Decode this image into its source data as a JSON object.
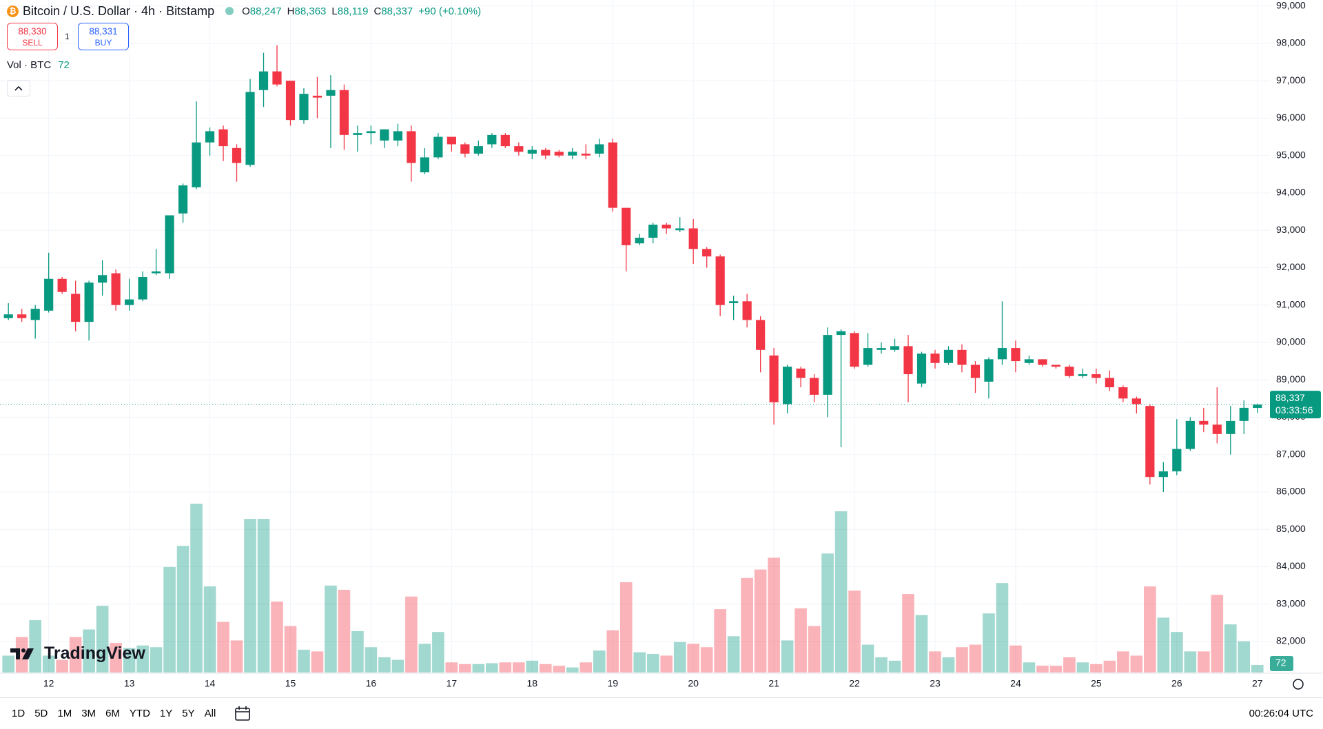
{
  "chart_data": {
    "type": "candlestick",
    "title": "Bitcoin / U.S. Dollar · 4h · Bitstamp",
    "ohlc_legend": [
      {
        "key": "O",
        "text": "88,247"
      },
      {
        "key": "H",
        "text": "88,363"
      },
      {
        "key": "L",
        "text": "88,119"
      },
      {
        "key": "C",
        "text": "88,337"
      }
    ],
    "change": "+90 (+0.10%)",
    "trade": {
      "sell": {
        "price": "88,330",
        "label": "SELL"
      },
      "quantity": "1",
      "buy": {
        "price": "88,331",
        "label": "BUY"
      }
    },
    "up_color": "#089981",
    "down_color": "#f23645",
    "categories": [
      null,
      null,
      null,
      "12",
      null,
      null,
      null,
      null,
      null,
      "13",
      null,
      null,
      null,
      null,
      null,
      "14",
      null,
      null,
      null,
      null,
      null,
      "15",
      null,
      null,
      null,
      null,
      null,
      "16",
      null,
      null,
      null,
      null,
      null,
      "17",
      null,
      null,
      null,
      null,
      null,
      "18",
      null,
      null,
      null,
      null,
      null,
      "19",
      null,
      null,
      null,
      null,
      null,
      "20",
      null,
      null,
      null,
      null,
      null,
      "21",
      null,
      null,
      null,
      null,
      null,
      "22",
      null,
      null,
      null,
      null,
      null,
      "23",
      null,
      null,
      null,
      null,
      null,
      "24",
      null,
      null,
      null,
      null,
      null,
      "25",
      null,
      null,
      null,
      null,
      null,
      "26",
      null,
      null,
      null,
      null,
      null,
      "27"
    ],
    "open": [
      90650,
      90750,
      90600,
      90850,
      91700,
      91300,
      90550,
      91600,
      91850,
      91000,
      91150,
      91850,
      91850,
      93450,
      94150,
      95350,
      95700,
      95200,
      94750,
      96750,
      97250,
      97000,
      95950,
      96600,
      96600,
      96750,
      95550,
      95600,
      95400,
      95400,
      95650,
      94550,
      94950,
      95500,
      95300,
      95050,
      95300,
      95550,
      95250,
      95050,
      95150,
      95100,
      95000,
      95050,
      95050,
      95350,
      93600,
      92650,
      92800,
      93150,
      93000,
      93050,
      92500,
      92300,
      91050,
      91100,
      90600,
      89650,
      88350,
      89300,
      89050,
      88600,
      90200,
      90250,
      89400,
      89800,
      89800,
      89900,
      88900,
      89700,
      89450,
      89800,
      89400,
      88950,
      89550,
      89850,
      89450,
      89550,
      89400,
      89350,
      89100,
      89150,
      89050,
      88800,
      88500,
      88300,
      86400,
      86550,
      87150,
      87900,
      87800,
      87550,
      87900,
      88247
    ],
    "high": [
      91050,
      90900,
      91000,
      92400,
      91750,
      91650,
      91650,
      92200,
      91950,
      91700,
      91900,
      92500,
      93400,
      94250,
      96450,
      95750,
      95800,
      95300,
      97050,
      97750,
      97950,
      97000,
      96800,
      97100,
      97150,
      96900,
      95800,
      95800,
      95700,
      95850,
      95800,
      95200,
      95600,
      95500,
      95350,
      95400,
      95600,
      95600,
      95350,
      95250,
      95200,
      95150,
      95200,
      95300,
      95450,
      95450,
      93600,
      92900,
      93200,
      93200,
      93350,
      93300,
      92550,
      92350,
      91250,
      91300,
      90700,
      89850,
      89400,
      89350,
      89150,
      90400,
      90350,
      90300,
      90250,
      90000,
      90100,
      90200,
      89750,
      89800,
      89900,
      89950,
      89500,
      89600,
      91100,
      90050,
      89650,
      89550,
      89400,
      89400,
      89300,
      89300,
      89250,
      88850,
      88550,
      88350,
      86800,
      87950,
      88000,
      88250,
      88800,
      88300,
      88450,
      88363
    ],
    "low": [
      90600,
      90550,
      90100,
      90800,
      91300,
      90300,
      90050,
      91250,
      90850,
      90850,
      91100,
      91800,
      91700,
      93200,
      94100,
      95000,
      94850,
      94300,
      94700,
      96300,
      96850,
      95800,
      95850,
      96000,
      95200,
      95150,
      95100,
      95300,
      95200,
      95250,
      94300,
      94500,
      94900,
      95100,
      94950,
      95000,
      95200,
      95200,
      95000,
      94900,
      94900,
      94950,
      94900,
      94900,
      94950,
      93500,
      91900,
      92600,
      92650,
      92900,
      92950,
      92100,
      92000,
      90700,
      90600,
      90400,
      89200,
      87800,
      88100,
      88800,
      88400,
      88000,
      87200,
      89300,
      89350,
      89700,
      89750,
      88400,
      88800,
      89300,
      89400,
      89200,
      88650,
      88500,
      89400,
      89200,
      89400,
      89350,
      89300,
      89050,
      89050,
      88900,
      88700,
      88400,
      88100,
      86200,
      86000,
      86450,
      87100,
      87600,
      87300,
      87000,
      87550,
      88119
    ],
    "close": [
      90750,
      90650,
      90900,
      91700,
      91350,
      90550,
      91600,
      91800,
      91000,
      91150,
      91750,
      91900,
      93400,
      94200,
      95350,
      95650,
      95250,
      94800,
      96700,
      97250,
      96900,
      95950,
      96650,
      96550,
      96750,
      95550,
      95600,
      95650,
      95700,
      95650,
      94800,
      94950,
      95500,
      95300,
      95050,
      95250,
      95550,
      95250,
      95100,
      95150,
      95000,
      95000,
      95100,
      95000,
      95300,
      93600,
      92600,
      92800,
      93150,
      93050,
      93050,
      92500,
      92300,
      91000,
      91100,
      90600,
      89800,
      88400,
      89350,
      89050,
      88600,
      90200,
      90300,
      89350,
      89850,
      89850,
      89900,
      89150,
      89700,
      89450,
      89800,
      89400,
      89050,
      89550,
      89850,
      89500,
      89550,
      89400,
      89350,
      89100,
      89150,
      89050,
      88800,
      88500,
      88350,
      86400,
      86550,
      87150,
      87900,
      87800,
      87550,
      87900,
      88250,
      88337
    ],
    "volume": {
      "name": "Vol · BTC",
      "values": [
        160,
        336,
        496,
        160,
        120,
        336,
        408,
        632,
        280,
        232,
        256,
        240,
        1000,
        1200,
        1600,
        816,
        480,
        304,
        1456,
        1456,
        672,
        440,
        216,
        200,
        824,
        784,
        392,
        240,
        144,
        120,
        720,
        272,
        384,
        96,
        80,
        80,
        88,
        96,
        96,
        112,
        80,
        64,
        48,
        96,
        208,
        400,
        856,
        192,
        176,
        160,
        288,
        272,
        240,
        600,
        344,
        896,
        976,
        1088,
        304,
        608,
        440,
        1128,
        1528,
        776,
        264,
        144,
        112,
        744,
        544,
        200,
        144,
        240,
        264,
        560,
        848,
        256,
        96,
        64,
        64,
        144,
        96,
        80,
        112,
        200,
        160,
        816,
        520,
        384,
        200,
        200,
        736,
        456,
        296,
        72
      ]
    },
    "last_price": {
      "value": 88337,
      "label": "88,337",
      "countdown": "03:33:56"
    },
    "ylim": [
      81170,
      99160
    ],
    "yticks": [
      {
        "value": 82000,
        "label": "82,000"
      },
      {
        "value": 83000,
        "label": "83,000"
      },
      {
        "value": 84000,
        "label": "84,000"
      },
      {
        "value": 85000,
        "label": "85,000"
      },
      {
        "value": 86000,
        "label": "86,000"
      },
      {
        "value": 87000,
        "label": "87,000"
      },
      {
        "value": 88000,
        "label": "88,000"
      },
      {
        "value": 89000,
        "label": "89,000"
      },
      {
        "value": 90000,
        "label": "90,000"
      },
      {
        "value": 91000,
        "label": "91,000"
      },
      {
        "value": 92000,
        "label": "92,000"
      },
      {
        "value": 93000,
        "label": "93,000"
      },
      {
        "value": 94000,
        "label": "94,000"
      },
      {
        "value": 95000,
        "label": "95,000"
      },
      {
        "value": 96000,
        "label": "96,000"
      },
      {
        "value": 97000,
        "label": "97,000"
      },
      {
        "value": 98000,
        "label": "98,000"
      },
      {
        "value": 99000,
        "label": "99,000"
      }
    ],
    "grid": true
  },
  "brand": "TradingView",
  "toolbar": {
    "ranges": [
      "1D",
      "5D",
      "1M",
      "3M",
      "6M",
      "YTD",
      "1Y",
      "5Y",
      "All"
    ],
    "clock": "00:26:04 UTC"
  }
}
